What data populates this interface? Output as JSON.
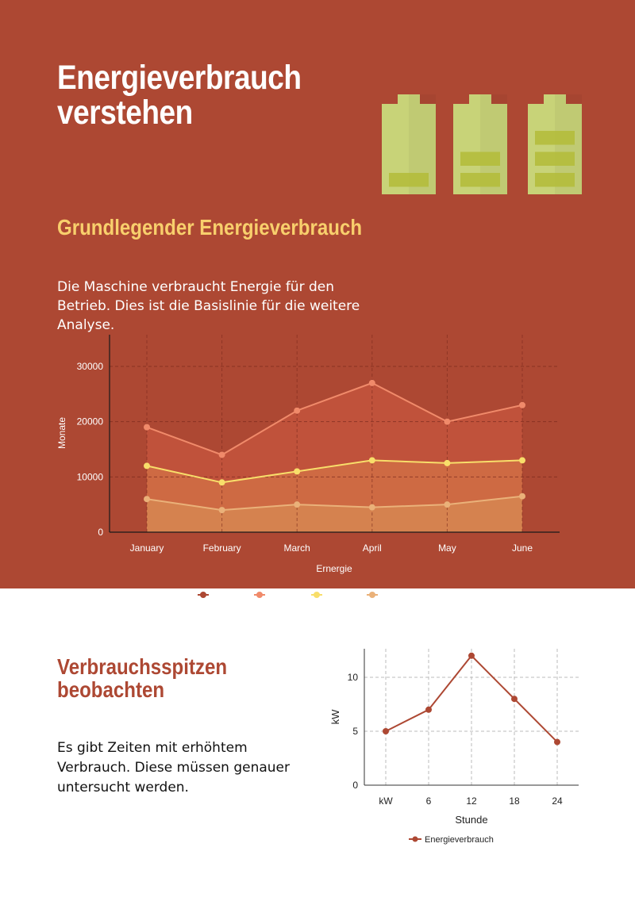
{
  "header": {
    "title_line1": "Energieverbrauch",
    "title_line2": "verstehen",
    "subtitle": "Grundlegender Energieverbrauch",
    "intro": "Die Maschine verbraucht Energie für den Betrieb. Dies ist die Basislinie für die weitere Analyse."
  },
  "section2": {
    "title_line1": "Verbrauchsspitzen",
    "title_line2": "beobachten",
    "text": "Es gibt Zeiten mit erhöhtem Verbrauch. Diese müssen genauer untersucht werden."
  },
  "colors": {
    "background": "#ad4833",
    "accent_yellow": "#f8cf6c",
    "battery": "#c8d378",
    "battery_fill": "#b4bd3c"
  },
  "battery_icons": [
    {
      "name": "battery-low-icon",
      "level": 1
    },
    {
      "name": "battery-medium-icon",
      "level": 2
    },
    {
      "name": "battery-high-icon",
      "level": 3
    }
  ],
  "chart_data": [
    {
      "type": "area",
      "title": "",
      "xlabel": "Ernergie",
      "ylabel": "Monate",
      "categories": [
        "January",
        "February",
        "March",
        "April",
        "May",
        "June"
      ],
      "ylim": [
        0,
        30000
      ],
      "yticks": [
        0,
        10000,
        20000,
        30000
      ],
      "grid": true,
      "legend": "bottom-center",
      "series": [
        {
          "color": "#ad4833",
          "values": [
            0,
            0,
            0,
            0,
            0,
            0
          ]
        },
        {
          "color": "#f08a6a",
          "values": [
            19000,
            14000,
            22000,
            27000,
            20000,
            23000
          ]
        },
        {
          "color": "#f8de6a",
          "values": [
            12000,
            9000,
            11000,
            13000,
            12500,
            13000
          ]
        },
        {
          "color": "#eab179",
          "values": [
            6000,
            4000,
            5000,
            4500,
            5000,
            6500
          ]
        }
      ]
    },
    {
      "type": "line",
      "title": "",
      "xlabel": "Stunde",
      "ylabel": "kW",
      "categories": [
        "kW",
        "6",
        "12",
        "18",
        "24"
      ],
      "ylim": [
        0,
        12.5
      ],
      "yticks": [
        0,
        5,
        10
      ],
      "grid": true,
      "legend": "bottom-center",
      "series": [
        {
          "name": "Energieverbrauch",
          "color": "#ad4833",
          "values": [
            5,
            7,
            12,
            8,
            4
          ]
        }
      ]
    }
  ]
}
